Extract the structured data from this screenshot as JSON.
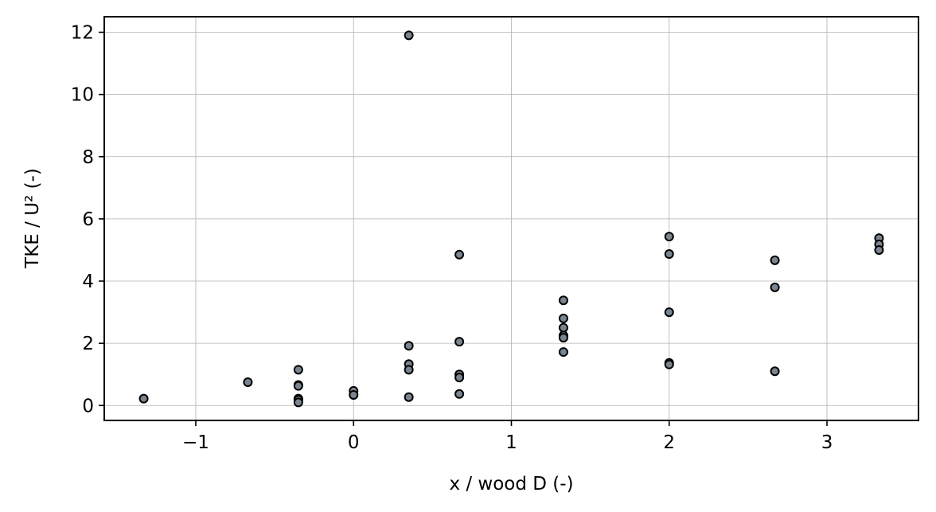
{
  "chart_data": {
    "type": "scatter",
    "title": "",
    "xlabel": "x / wood D (-)",
    "ylabel": "TKE / U² (-)",
    "xlim": [
      -1.58,
      3.58
    ],
    "ylim": [
      -0.48,
      12.5
    ],
    "grid": true,
    "x_ticks": [
      -1,
      0,
      1,
      2,
      3
    ],
    "x_tick_labels": [
      "−1",
      "0",
      "1",
      "2",
      "3"
    ],
    "y_ticks": [
      0,
      2,
      4,
      6,
      8,
      10,
      12
    ],
    "y_tick_labels": [
      "0",
      "2",
      "4",
      "6",
      "8",
      "10",
      "12"
    ],
    "marker_color": "#7a8590",
    "edge_color": "#000000",
    "series": [
      {
        "points": [
          [
            -1.33,
            0.22
          ],
          [
            -0.67,
            0.75
          ],
          [
            -0.35,
            1.15
          ],
          [
            -0.35,
            0.66
          ],
          [
            -0.35,
            0.63
          ],
          [
            -0.35,
            0.22
          ],
          [
            -0.35,
            0.18
          ],
          [
            -0.35,
            0.1
          ],
          [
            0.0,
            0.47
          ],
          [
            0.0,
            0.34
          ],
          [
            0.35,
            11.9
          ],
          [
            0.35,
            1.92
          ],
          [
            0.35,
            1.33
          ],
          [
            0.35,
            1.15
          ],
          [
            0.35,
            0.27
          ],
          [
            0.67,
            4.85
          ],
          [
            0.67,
            2.05
          ],
          [
            0.67,
            1.0
          ],
          [
            0.67,
            0.9
          ],
          [
            0.67,
            0.37
          ],
          [
            1.33,
            3.38
          ],
          [
            1.33,
            2.8
          ],
          [
            1.33,
            2.5
          ],
          [
            1.33,
            2.25
          ],
          [
            1.33,
            2.18
          ],
          [
            1.33,
            1.72
          ],
          [
            2.0,
            5.43
          ],
          [
            2.0,
            4.87
          ],
          [
            2.0,
            3.0
          ],
          [
            2.0,
            1.37
          ],
          [
            2.0,
            1.32
          ],
          [
            2.67,
            4.67
          ],
          [
            2.67,
            3.8
          ],
          [
            2.67,
            1.1
          ],
          [
            3.33,
            5.38
          ],
          [
            3.33,
            5.18
          ],
          [
            3.33,
            5.0
          ]
        ]
      }
    ]
  }
}
